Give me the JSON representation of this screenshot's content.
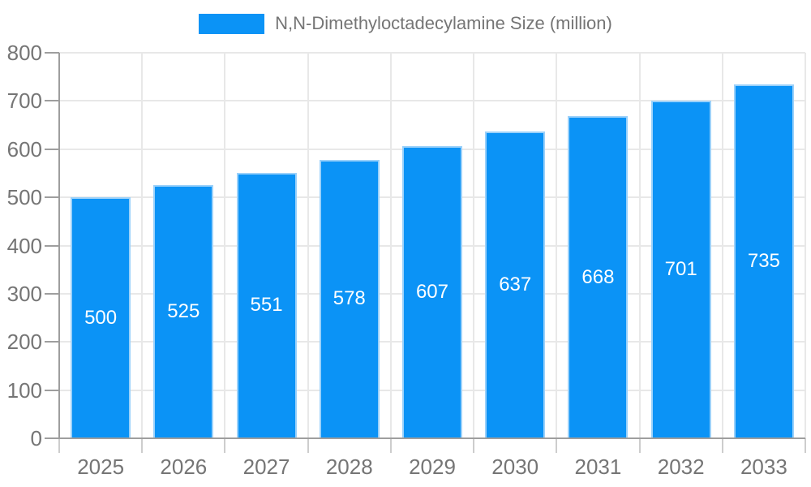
{
  "chart_data": {
    "type": "bar",
    "title": "",
    "legend": "N,N-Dimethyloctadecylamine Size (million)",
    "legend_position": "top",
    "categories": [
      "2025",
      "2026",
      "2027",
      "2028",
      "2029",
      "2030",
      "2031",
      "2032",
      "2033"
    ],
    "values": [
      500,
      525,
      551,
      578,
      607,
      637,
      668,
      701,
      735
    ],
    "xlabel": "",
    "ylabel": "",
    "ylim": [
      0,
      800
    ],
    "y_ticks": [
      0,
      100,
      200,
      300,
      400,
      500,
      600,
      700,
      800
    ],
    "grid": true,
    "value_labels": "centered-in-bar",
    "colors": {
      "bar_fill": "#0b93f6",
      "bar_border": "#9bd1fa",
      "axis_line": "#9e9e9e",
      "grid_line": "#e8e8e8",
      "tick_line": "#cdcdcd",
      "text": "#757575",
      "value_label": "#ffffff"
    }
  }
}
